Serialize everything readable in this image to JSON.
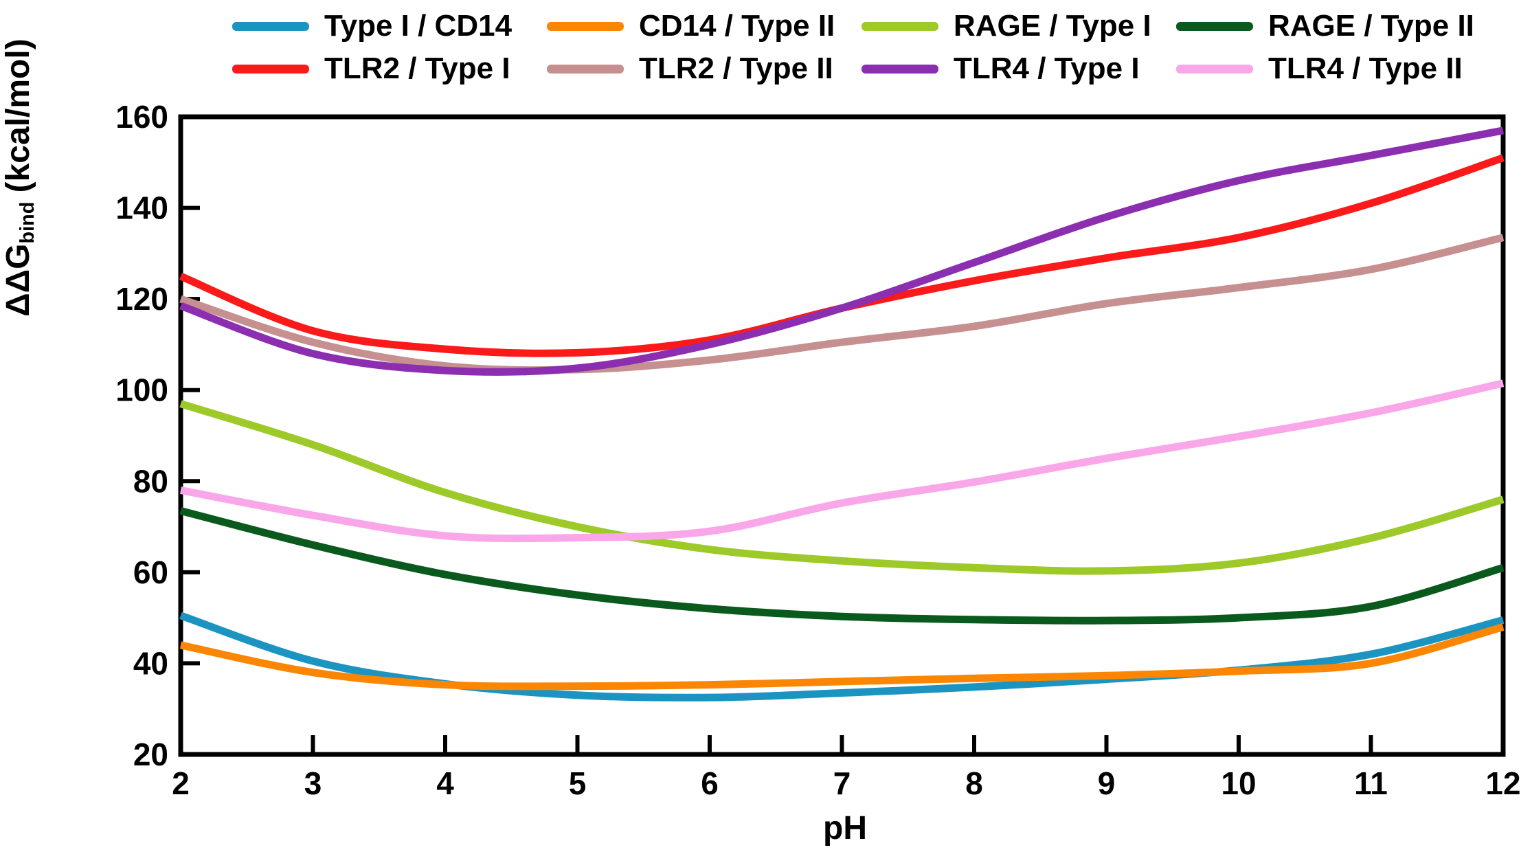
{
  "page": {
    "background": "#ffffff"
  },
  "chart_data": {
    "type": "line",
    "title": "",
    "xlabel": "pH",
    "ylabel_main": "ΔΔG",
    "ylabel_sub": "bind",
    "ylabel_unit": " (kcal/mol)",
    "x": [
      2,
      3,
      4,
      5,
      6,
      7,
      8,
      9,
      10,
      11,
      12
    ],
    "xticks": [
      2,
      3,
      4,
      5,
      6,
      7,
      8,
      9,
      10,
      11,
      12
    ],
    "yticks": [
      20,
      40,
      60,
      80,
      100,
      120,
      140,
      160
    ],
    "xlim": [
      2,
      12
    ],
    "ylim": [
      20,
      160
    ],
    "grid": false,
    "legend_position": "top",
    "legend_rows": [
      [
        0,
        1,
        2,
        3
      ],
      [
        4,
        5,
        6,
        7
      ]
    ],
    "series": [
      {
        "name": "Type I / CD14",
        "color": "#1B94C1",
        "values": [
          50.5,
          40.5,
          35.5,
          33,
          32.5,
          33.5,
          34.8,
          36.5,
          38.5,
          42,
          49.5
        ]
      },
      {
        "name": "CD14 / Type II",
        "color": "#FB8604",
        "values": [
          44,
          38,
          35.3,
          35,
          35.3,
          36,
          36.7,
          37.3,
          38.3,
          40,
          48
        ]
      },
      {
        "name": "RAGE / Type I",
        "color": "#9DC929",
        "values": [
          97,
          88,
          77.5,
          70,
          65,
          62.5,
          61,
          60.3,
          62,
          67.5,
          76
        ]
      },
      {
        "name": "RAGE / Type II",
        "color": "#0A5A1E",
        "values": [
          73.5,
          66,
          59.5,
          55,
          52,
          50.3,
          49.6,
          49.4,
          50,
          52.5,
          61
        ]
      },
      {
        "name": "TLR2 / Type I",
        "color": "#FA1A1A",
        "values": [
          125,
          113,
          109,
          108.2,
          111,
          118,
          124,
          129,
          133.5,
          141,
          151
        ]
      },
      {
        "name": "TLR2 / Type II",
        "color": "#C69090",
        "values": [
          120,
          110.5,
          105.3,
          104.5,
          106.6,
          110.5,
          114,
          119,
          122.5,
          126.5,
          133.5
        ]
      },
      {
        "name": "TLR4 / Type I",
        "color": "#8B2FB0",
        "values": [
          118.5,
          108,
          104.3,
          104.8,
          110,
          118,
          128,
          138,
          146,
          151.5,
          157
        ]
      },
      {
        "name": "TLR4 / Type II",
        "color": "#F9A7E9",
        "values": [
          78,
          72.5,
          68,
          67.6,
          69,
          75.2,
          79.8,
          85,
          89.8,
          95,
          101.5
        ]
      }
    ]
  }
}
